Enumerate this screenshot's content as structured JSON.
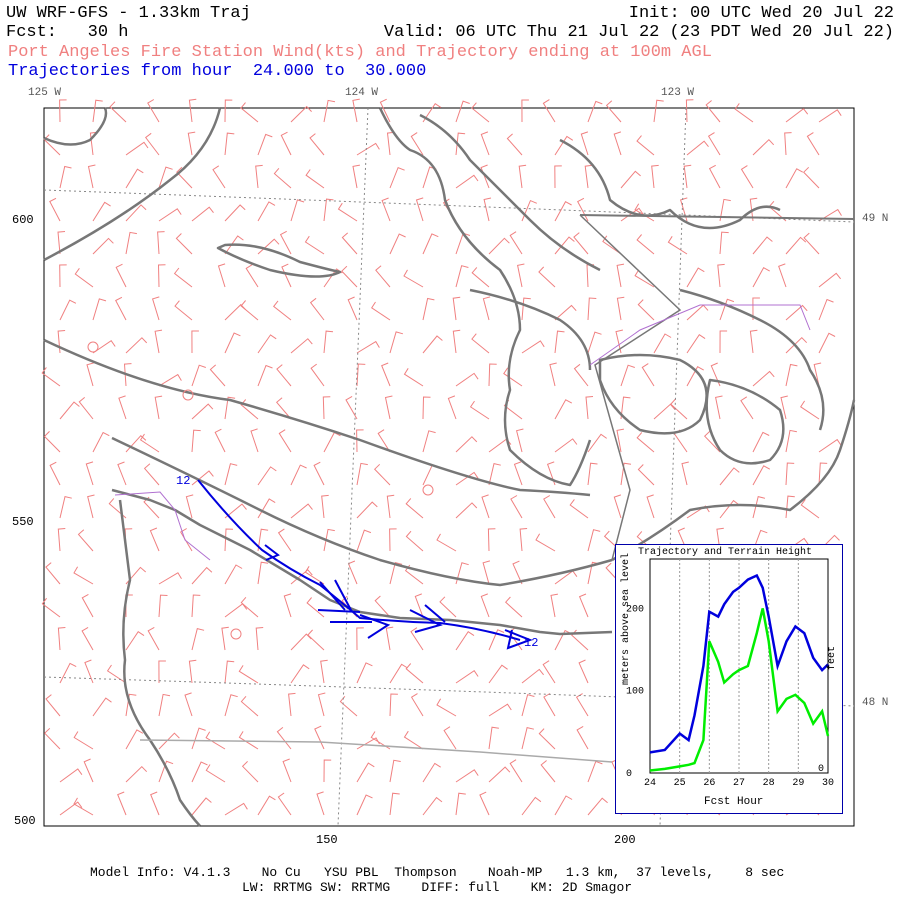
{
  "header": {
    "line1_left": "UW WRF-GFS - 1.33km Traj",
    "line1_right": "Init: 00 UTC Wed 20 Jul 22",
    "line2_left": "Fcst:   30 h",
    "line2_right": "Valid: 06 UTC Thu 21 Jul 22 (23 PDT Wed 20 Jul 22)",
    "line3": "Port Angeles Fire Station Wind(kts) and Trajectory ending at 100m AGL",
    "line4": "Trajectories from hour  24.000 to  30.000"
  },
  "longitude_labels": [
    "125 W",
    "124 W",
    "123 W"
  ],
  "latitude_labels": [
    "49 N",
    "48 N"
  ],
  "y_ticks": [
    "600",
    "550",
    "500"
  ],
  "x_ticks": [
    "150",
    "200"
  ],
  "trajectory_labels": {
    "start": "12",
    "end": "12"
  },
  "colors": {
    "coast": "#777777",
    "wind_barbs": "#f08080",
    "trajectory": "#0000dd",
    "terrain": "#00ee00",
    "border_purple": "#b070d0",
    "header_red": "#f08080",
    "header_blue": "#0000dd"
  },
  "inset": {
    "title": "Trajectory and Terrain Height",
    "ylabel_left": "meters above sea level",
    "ylabel_right": "feet",
    "xlabel": "Fcst Hour",
    "x_ticks": [
      "24",
      "25",
      "26",
      "27",
      "28",
      "29",
      "30"
    ],
    "y_ticks": [
      "200",
      "100",
      "0"
    ],
    "right_tick": "0",
    "chart_data": {
      "type": "line",
      "x": [
        24,
        24.5,
        25,
        25.3,
        25.5,
        25.8,
        26.0,
        26.3,
        26.5,
        26.8,
        27.0,
        27.3,
        27.6,
        27.8,
        28.0,
        28.3,
        28.6,
        28.9,
        29.2,
        29.5,
        29.8,
        30.0
      ],
      "series": [
        {
          "name": "trajectory",
          "values": [
            25,
            28,
            48,
            40,
            70,
            130,
            196,
            190,
            205,
            220,
            225,
            235,
            240,
            225,
            190,
            130,
            160,
            178,
            170,
            140,
            125,
            132
          ]
        },
        {
          "name": "terrain",
          "values": [
            3,
            5,
            8,
            10,
            12,
            40,
            160,
            135,
            110,
            120,
            125,
            130,
            170,
            200,
            160,
            75,
            90,
            95,
            85,
            60,
            75,
            45
          ]
        }
      ],
      "xlim": [
        24,
        30
      ],
      "ylim": [
        0,
        260
      ]
    }
  },
  "footer": {
    "line1": "Model Info: V4.1.3    No Cu   YSU PBL  Thompson    Noah-MP   1.3 km,  37 levels,    8 sec",
    "line2": "LW: RRTMG SW: RRTMG    DIFF: full    KM: 2D Smagor"
  }
}
